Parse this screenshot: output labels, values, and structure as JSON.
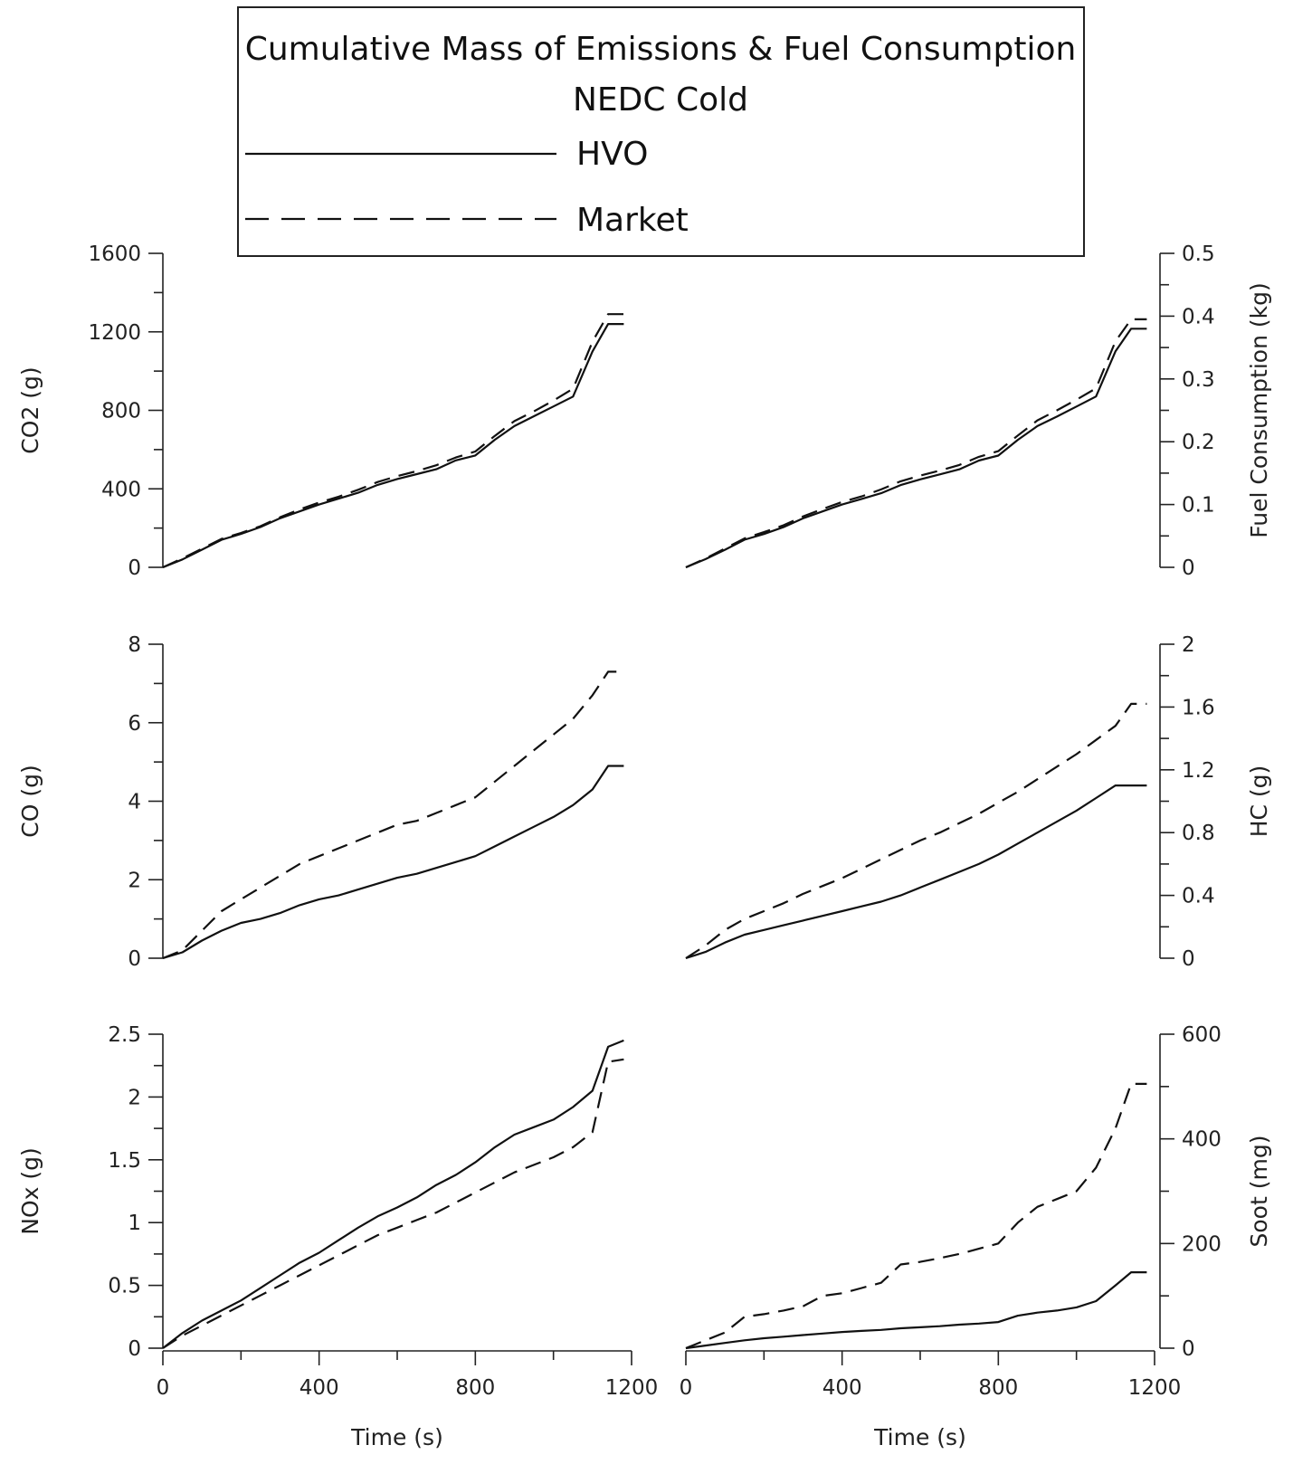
{
  "legend": {
    "title_line1": "Cumulative Mass of Emissions & Fuel Consumption",
    "title_line2": "NEDC Cold",
    "entries": [
      {
        "label": "HVO",
        "style": "solid"
      },
      {
        "label": "Market",
        "style": "dashed"
      }
    ]
  },
  "chart_data": [
    {
      "type": "line",
      "ylabel": "CO2 (g)",
      "xlabel": "",
      "xlim": [
        0,
        1200
      ],
      "ylim": [
        0,
        1600
      ],
      "yticks": [
        "0",
        "400",
        "800",
        "1200",
        "1600"
      ],
      "xticks": [],
      "series": [
        {
          "name": "HVO",
          "x": [
            0,
            50,
            100,
            150,
            200,
            250,
            300,
            350,
            400,
            450,
            500,
            550,
            600,
            650,
            700,
            750,
            800,
            850,
            900,
            950,
            1000,
            1050,
            1100,
            1140,
            1180
          ],
          "y": [
            0,
            40,
            90,
            140,
            170,
            205,
            250,
            285,
            320,
            350,
            380,
            420,
            450,
            475,
            500,
            545,
            570,
            650,
            720,
            770,
            820,
            870,
            1100,
            1240,
            1240
          ]
        },
        {
          "name": "Market",
          "x": [
            0,
            50,
            100,
            150,
            200,
            250,
            300,
            350,
            400,
            450,
            500,
            550,
            600,
            650,
            700,
            750,
            800,
            850,
            900,
            950,
            1000,
            1050,
            1100,
            1140,
            1180
          ],
          "y": [
            0,
            45,
            95,
            145,
            175,
            210,
            255,
            295,
            330,
            360,
            395,
            435,
            465,
            490,
            520,
            560,
            590,
            670,
            745,
            795,
            850,
            910,
            1150,
            1290,
            1290
          ]
        }
      ]
    },
    {
      "type": "line",
      "ylabel": "Fuel Consumption (kg)",
      "xlabel": "",
      "xlim": [
        0,
        1200
      ],
      "ylim": [
        0,
        0.5
      ],
      "yticks": [
        "0",
        "0.1",
        "0.2",
        "0.3",
        "0.4",
        "0.5"
      ],
      "xticks": [],
      "series": [
        {
          "name": "HVO",
          "x": [
            0,
            50,
            100,
            150,
            200,
            250,
            300,
            350,
            400,
            450,
            500,
            550,
            600,
            650,
            700,
            750,
            800,
            850,
            900,
            950,
            1000,
            1050,
            1100,
            1140,
            1180
          ],
          "y": [
            0,
            0.013,
            0.028,
            0.044,
            0.053,
            0.064,
            0.078,
            0.089,
            0.1,
            0.109,
            0.118,
            0.131,
            0.14,
            0.148,
            0.156,
            0.17,
            0.178,
            0.203,
            0.225,
            0.24,
            0.256,
            0.272,
            0.344,
            0.38,
            0.38
          ]
        },
        {
          "name": "Market",
          "x": [
            0,
            50,
            100,
            150,
            200,
            250,
            300,
            350,
            400,
            450,
            500,
            550,
            600,
            650,
            700,
            750,
            800,
            850,
            900,
            950,
            1000,
            1050,
            1100,
            1140,
            1180
          ],
          "y": [
            0,
            0.014,
            0.03,
            0.046,
            0.056,
            0.067,
            0.081,
            0.093,
            0.104,
            0.113,
            0.124,
            0.137,
            0.146,
            0.154,
            0.163,
            0.176,
            0.185,
            0.21,
            0.234,
            0.25,
            0.267,
            0.285,
            0.36,
            0.395,
            0.395
          ]
        }
      ]
    },
    {
      "type": "line",
      "ylabel": "CO (g)",
      "xlabel": "",
      "xlim": [
        0,
        1200
      ],
      "ylim": [
        0,
        8
      ],
      "yticks": [
        "0",
        "2",
        "4",
        "6",
        "8"
      ],
      "xticks": [],
      "series": [
        {
          "name": "HVO",
          "x": [
            0,
            50,
            100,
            150,
            200,
            250,
            300,
            350,
            400,
            450,
            500,
            550,
            600,
            650,
            700,
            750,
            800,
            850,
            900,
            950,
            1000,
            1050,
            1100,
            1140,
            1180
          ],
          "y": [
            0,
            0.15,
            0.45,
            0.7,
            0.9,
            1.0,
            1.15,
            1.35,
            1.5,
            1.6,
            1.75,
            1.9,
            2.05,
            2.15,
            2.3,
            2.45,
            2.6,
            2.85,
            3.1,
            3.35,
            3.6,
            3.9,
            4.3,
            4.9,
            4.9
          ]
        },
        {
          "name": "Market",
          "x": [
            0,
            50,
            100,
            150,
            200,
            250,
            300,
            350,
            400,
            450,
            500,
            550,
            600,
            650,
            700,
            750,
            800,
            850,
            900,
            950,
            1000,
            1050,
            1100,
            1140,
            1180
          ],
          "y": [
            0,
            0.2,
            0.7,
            1.2,
            1.5,
            1.8,
            2.1,
            2.4,
            2.6,
            2.8,
            3.0,
            3.2,
            3.4,
            3.5,
            3.7,
            3.9,
            4.1,
            4.5,
            4.9,
            5.3,
            5.7,
            6.1,
            6.7,
            7.3,
            7.3
          ]
        }
      ]
    },
    {
      "type": "line",
      "ylabel": "HC (g)",
      "xlabel": "",
      "xlim": [
        0,
        1200
      ],
      "ylim": [
        0,
        2
      ],
      "yticks": [
        "0",
        "0.4",
        "0.8",
        "1.2",
        "1.6",
        "2"
      ],
      "xticks": [],
      "series": [
        {
          "name": "HVO",
          "x": [
            0,
            50,
            100,
            150,
            200,
            250,
            300,
            350,
            400,
            450,
            500,
            550,
            600,
            650,
            700,
            750,
            800,
            850,
            900,
            950,
            1000,
            1050,
            1100,
            1140,
            1180
          ],
          "y": [
            0,
            0.04,
            0.1,
            0.15,
            0.18,
            0.21,
            0.24,
            0.27,
            0.3,
            0.33,
            0.36,
            0.4,
            0.45,
            0.5,
            0.55,
            0.6,
            0.66,
            0.73,
            0.8,
            0.87,
            0.94,
            1.02,
            1.1,
            1.1,
            1.1
          ]
        },
        {
          "name": "Market",
          "x": [
            0,
            50,
            100,
            150,
            200,
            250,
            300,
            350,
            400,
            450,
            500,
            550,
            600,
            650,
            700,
            750,
            800,
            850,
            900,
            950,
            1000,
            1050,
            1100,
            1140,
            1180
          ],
          "y": [
            0,
            0.08,
            0.18,
            0.25,
            0.3,
            0.35,
            0.41,
            0.46,
            0.51,
            0.57,
            0.63,
            0.69,
            0.75,
            0.8,
            0.86,
            0.92,
            0.99,
            1.06,
            1.14,
            1.22,
            1.3,
            1.39,
            1.48,
            1.62,
            1.62
          ]
        }
      ]
    },
    {
      "type": "line",
      "ylabel": "NOx (g)",
      "xlabel": "Time (s)",
      "xlim": [
        0,
        1200
      ],
      "ylim": [
        0,
        2.5
      ],
      "yticks": [
        "0",
        "0.5",
        "1",
        "1.5",
        "2",
        "2.5"
      ],
      "xticks": [
        "0",
        "400",
        "800",
        "1200"
      ],
      "series": [
        {
          "name": "HVO",
          "x": [
            0,
            50,
            100,
            150,
            200,
            250,
            300,
            350,
            400,
            450,
            500,
            550,
            600,
            650,
            700,
            750,
            800,
            850,
            900,
            950,
            1000,
            1050,
            1100,
            1140,
            1180
          ],
          "y": [
            0,
            0.12,
            0.22,
            0.3,
            0.38,
            0.48,
            0.58,
            0.68,
            0.76,
            0.86,
            0.96,
            1.05,
            1.12,
            1.2,
            1.3,
            1.38,
            1.48,
            1.6,
            1.7,
            1.76,
            1.82,
            1.92,
            2.05,
            2.4,
            2.45
          ]
        },
        {
          "name": "Market",
          "x": [
            0,
            50,
            100,
            150,
            200,
            250,
            300,
            350,
            400,
            450,
            500,
            550,
            600,
            650,
            700,
            750,
            800,
            850,
            900,
            950,
            1000,
            1050,
            1100,
            1140,
            1180
          ],
          "y": [
            0,
            0.1,
            0.18,
            0.26,
            0.34,
            0.42,
            0.5,
            0.58,
            0.66,
            0.74,
            0.82,
            0.9,
            0.96,
            1.02,
            1.08,
            1.16,
            1.24,
            1.32,
            1.4,
            1.46,
            1.52,
            1.6,
            1.72,
            2.28,
            2.3
          ]
        }
      ]
    },
    {
      "type": "line",
      "ylabel": "Soot (mg)",
      "xlabel": "Time (s)",
      "xlim": [
        0,
        1200
      ],
      "ylim": [
        0,
        600
      ],
      "yticks": [
        "0",
        "200",
        "400",
        "600"
      ],
      "xticks": [
        "0",
        "400",
        "800",
        "1200"
      ],
      "series": [
        {
          "name": "HVO",
          "x": [
            0,
            50,
            100,
            150,
            200,
            250,
            300,
            350,
            400,
            450,
            500,
            550,
            600,
            650,
            700,
            750,
            800,
            850,
            900,
            950,
            1000,
            1050,
            1100,
            1140,
            1180
          ],
          "y": [
            0,
            5,
            10,
            15,
            19,
            22,
            25,
            28,
            31,
            33,
            35,
            38,
            40,
            42,
            45,
            47,
            50,
            62,
            68,
            72,
            78,
            90,
            120,
            145,
            145
          ]
        },
        {
          "name": "Market",
          "x": [
            0,
            50,
            100,
            150,
            200,
            250,
            300,
            350,
            400,
            450,
            500,
            550,
            600,
            650,
            700,
            750,
            800,
            850,
            900,
            950,
            1000,
            1050,
            1100,
            1140,
            1180
          ],
          "y": [
            0,
            15,
            30,
            60,
            65,
            72,
            80,
            100,
            105,
            115,
            125,
            160,
            165,
            172,
            180,
            190,
            200,
            240,
            270,
            285,
            300,
            345,
            420,
            505,
            505
          ]
        }
      ]
    }
  ]
}
